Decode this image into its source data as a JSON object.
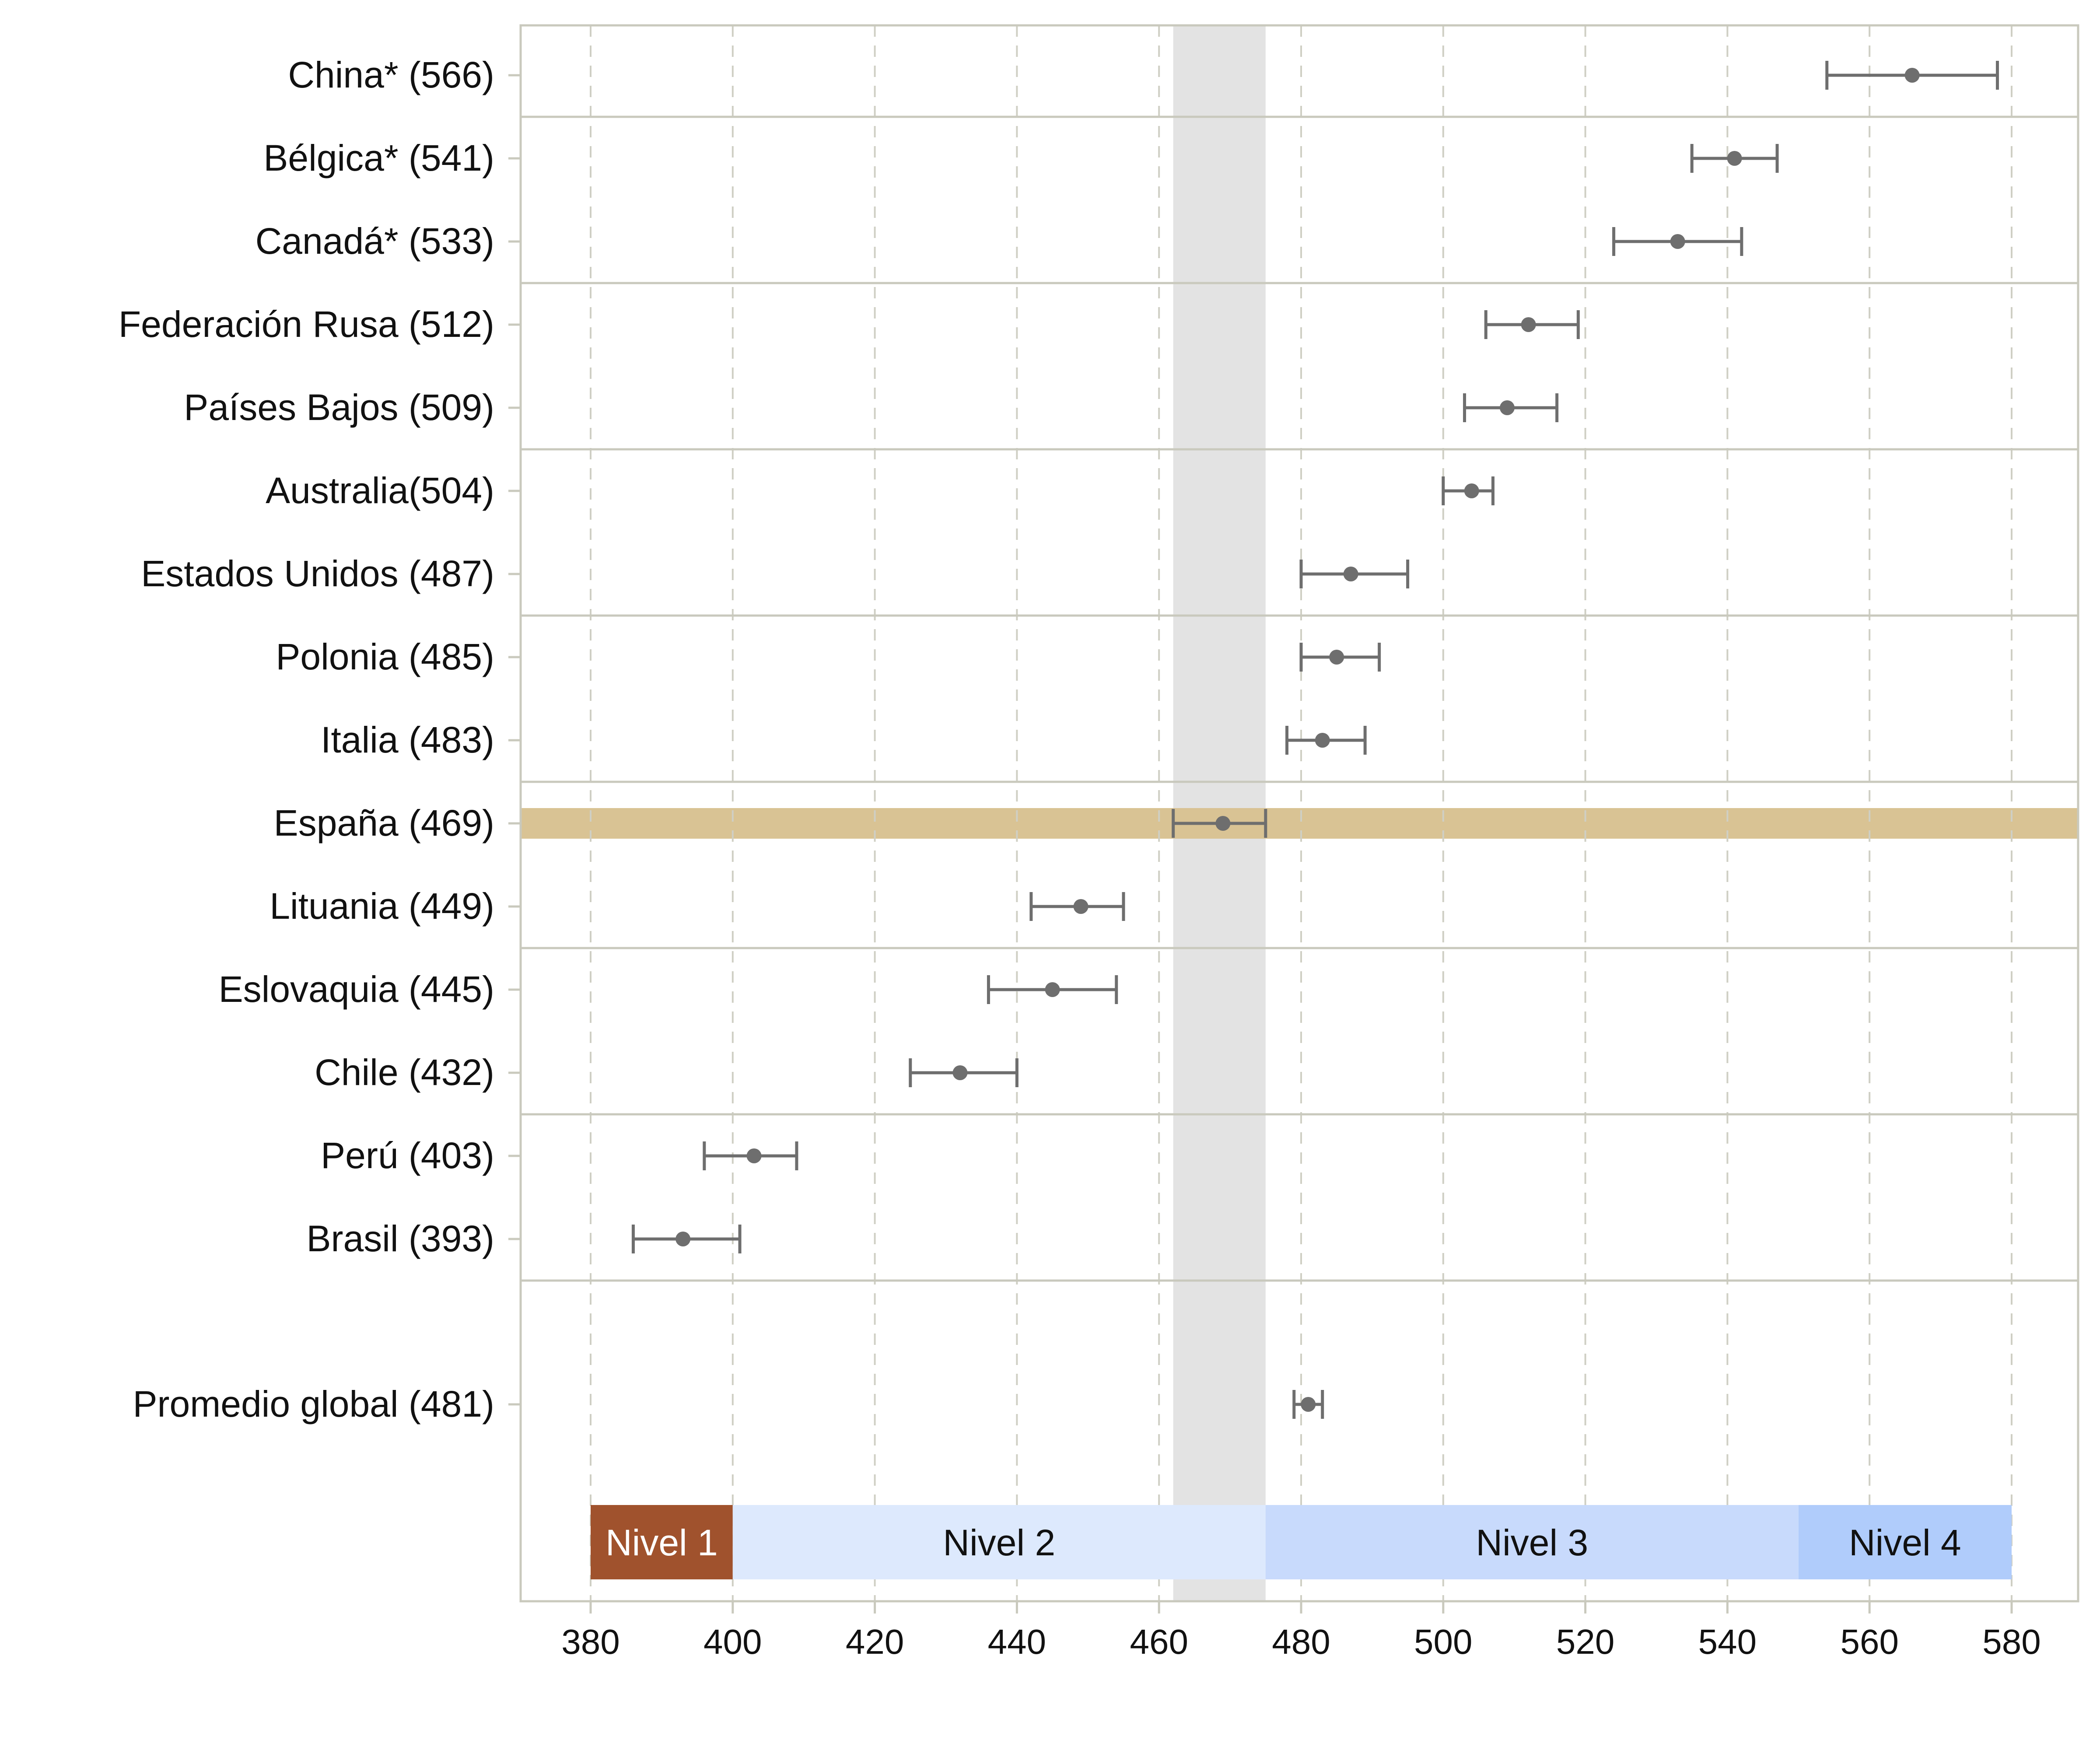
{
  "chart_data": {
    "type": "dot-errorbar",
    "title": "",
    "xlabel": "",
    "ylabel": "",
    "xlim": [
      370,
      590
    ],
    "xticks": [
      380,
      400,
      420,
      440,
      460,
      480,
      500,
      520,
      540,
      560,
      580
    ],
    "grid": "vertical dashed",
    "rows": [
      {
        "label": "China* (566)",
        "value": 566,
        "low": 554,
        "high": 578
      },
      {
        "label": "Bélgica* (541)",
        "value": 541,
        "low": 535,
        "high": 547
      },
      {
        "label": "Canadá* (533)",
        "value": 533,
        "low": 524,
        "high": 542
      },
      {
        "label": "Federación Rusa (512)",
        "value": 512,
        "low": 506,
        "high": 519
      },
      {
        "label": "Países Bajos (509)",
        "value": 509,
        "low": 503,
        "high": 516
      },
      {
        "label": "Australia(504)",
        "value": 504,
        "low": 500,
        "high": 507
      },
      {
        "label": "Estados Unidos (487)",
        "value": 487,
        "low": 480,
        "high": 495
      },
      {
        "label": "Polonia (485)",
        "value": 485,
        "low": 480,
        "high": 491
      },
      {
        "label": "Italia (483)",
        "value": 483,
        "low": 478,
        "high": 489
      },
      {
        "label": "España (469)",
        "value": 469,
        "low": 462,
        "high": 475,
        "highlight": true
      },
      {
        "label": "Lituania (449)",
        "value": 449,
        "low": 442,
        "high": 455
      },
      {
        "label": "Eslovaquia (445)",
        "value": 445,
        "low": 436,
        "high": 454
      },
      {
        "label": "Chile (432)",
        "value": 432,
        "low": 425,
        "high": 440
      },
      {
        "label": "Perú (403)",
        "value": 403,
        "low": 396,
        "high": 409
      },
      {
        "label": "Brasil (393)",
        "value": 393,
        "low": 386,
        "high": 401
      },
      {
        "label": "Promedio global (481)",
        "value": 481,
        "low": 479,
        "high": 483
      }
    ],
    "group_separators_after": [
      "China* (566)",
      "Canadá* (533)",
      "Países Bajos (509)",
      "Estados Unidos (487)",
      "Italia (483)",
      "Lituania (449)",
      "Chile (432)",
      "Brasil (393)"
    ],
    "reference_band": {
      "from": 462,
      "to": 475,
      "color": "#e3e3e3"
    },
    "levels": [
      {
        "label": "Nivel 1",
        "from": 380,
        "to": 400,
        "color": "#a0522d",
        "text_color": "#ffffff"
      },
      {
        "label": "Nivel 2",
        "from": 400,
        "to": 475,
        "color": "#dde9fd",
        "text_color": "#111111"
      },
      {
        "label": "Nivel 3",
        "from": 475,
        "to": 550,
        "color": "#c8dafc",
        "text_color": "#111111"
      },
      {
        "label": "Nivel 4",
        "from": 550,
        "to": 580,
        "color": "#b0ccfb",
        "text_color": "#111111"
      }
    ],
    "colors": {
      "point": "#6e6e6e",
      "highlight_row": "#d9c394",
      "frame": "#c9c9bd",
      "gridline": "#cfcfc4"
    }
  }
}
